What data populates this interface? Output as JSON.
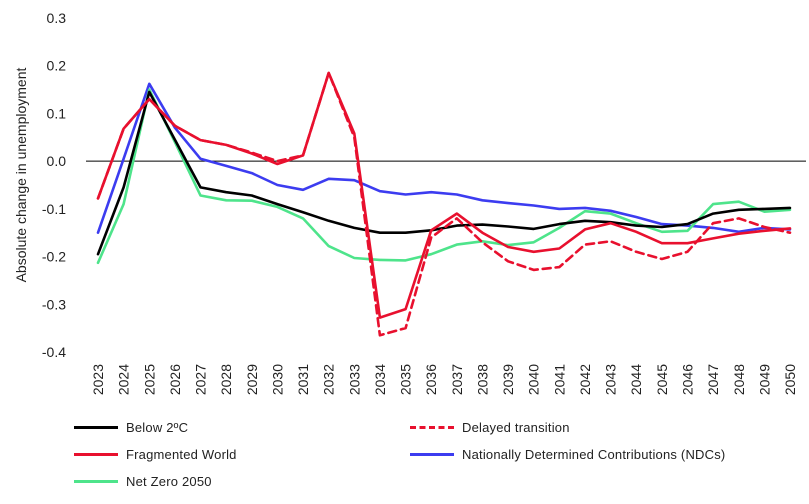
{
  "chart_data": {
    "type": "line",
    "ylabel": "Absolute change in unemployment",
    "xlabel": "",
    "ylim": [
      -0.4,
      0.3
    ],
    "yticks": [
      "0.3",
      "0.2",
      "0.1",
      "0.0",
      "-0.1",
      "-0.2",
      "-0.3",
      "-0.4"
    ],
    "grid": "zero-line only",
    "legend_position": "bottom",
    "categories": [
      "2023",
      "2024",
      "2025",
      "2026",
      "2027",
      "2028",
      "2029",
      "2030",
      "2031",
      "2032",
      "2033",
      "2034",
      "2035",
      "2036",
      "2037",
      "2038",
      "2039",
      "2040",
      "2041",
      "2042",
      "2043",
      "2044",
      "2045",
      "2046",
      "2047",
      "2048",
      "2049",
      "2050"
    ],
    "series": [
      {
        "name": "Below 2ºC",
        "color": "#000000",
        "dash": "solid",
        "values": [
          -0.195,
          -0.055,
          0.145,
          0.045,
          -0.055,
          -0.065,
          -0.072,
          -0.09,
          -0.107,
          -0.125,
          -0.14,
          -0.15,
          -0.15,
          -0.145,
          -0.135,
          -0.133,
          -0.137,
          -0.142,
          -0.132,
          -0.125,
          -0.128,
          -0.135,
          -0.138,
          -0.132,
          -0.11,
          -0.102,
          -0.1,
          -0.098
        ]
      },
      {
        "name": "Delayed transition",
        "color": "#e8102e",
        "dash": "dashed",
        "values": [
          -0.078,
          0.068,
          0.13,
          0.074,
          0.044,
          0.034,
          0.018,
          0.0,
          0.012,
          0.185,
          0.05,
          -0.365,
          -0.35,
          -0.16,
          -0.12,
          -0.17,
          -0.21,
          -0.228,
          -0.222,
          -0.175,
          -0.168,
          -0.19,
          -0.205,
          -0.19,
          -0.13,
          -0.12,
          -0.138,
          -0.15
        ]
      },
      {
        "name": "Fragmented World",
        "color": "#e8102e",
        "dash": "solid",
        "values": [
          -0.078,
          0.068,
          0.13,
          0.074,
          0.044,
          0.034,
          0.016,
          -0.006,
          0.012,
          0.185,
          0.058,
          -0.328,
          -0.31,
          -0.145,
          -0.11,
          -0.15,
          -0.18,
          -0.19,
          -0.183,
          -0.143,
          -0.13,
          -0.148,
          -0.172,
          -0.172,
          -0.162,
          -0.152,
          -0.146,
          -0.141
        ]
      },
      {
        "name": "Nationally Determined Contributions (NDCs)",
        "color": "#3c3cf0",
        "dash": "solid",
        "values": [
          -0.15,
          0.005,
          0.162,
          0.07,
          0.005,
          -0.01,
          -0.025,
          -0.05,
          -0.06,
          -0.037,
          -0.04,
          -0.063,
          -0.07,
          -0.065,
          -0.07,
          -0.082,
          -0.088,
          -0.093,
          -0.1,
          -0.098,
          -0.104,
          -0.117,
          -0.132,
          -0.135,
          -0.14,
          -0.148,
          -0.14,
          -0.143
        ]
      },
      {
        "name": "Net Zero 2050",
        "color": "#4ee48b",
        "dash": "solid",
        "values": [
          -0.213,
          -0.09,
          0.15,
          0.04,
          -0.072,
          -0.082,
          -0.083,
          -0.096,
          -0.12,
          -0.178,
          -0.203,
          -0.207,
          -0.208,
          -0.195,
          -0.175,
          -0.168,
          -0.176,
          -0.17,
          -0.14,
          -0.105,
          -0.11,
          -0.13,
          -0.148,
          -0.146,
          -0.09,
          -0.085,
          -0.106,
          -0.102
        ]
      }
    ]
  }
}
